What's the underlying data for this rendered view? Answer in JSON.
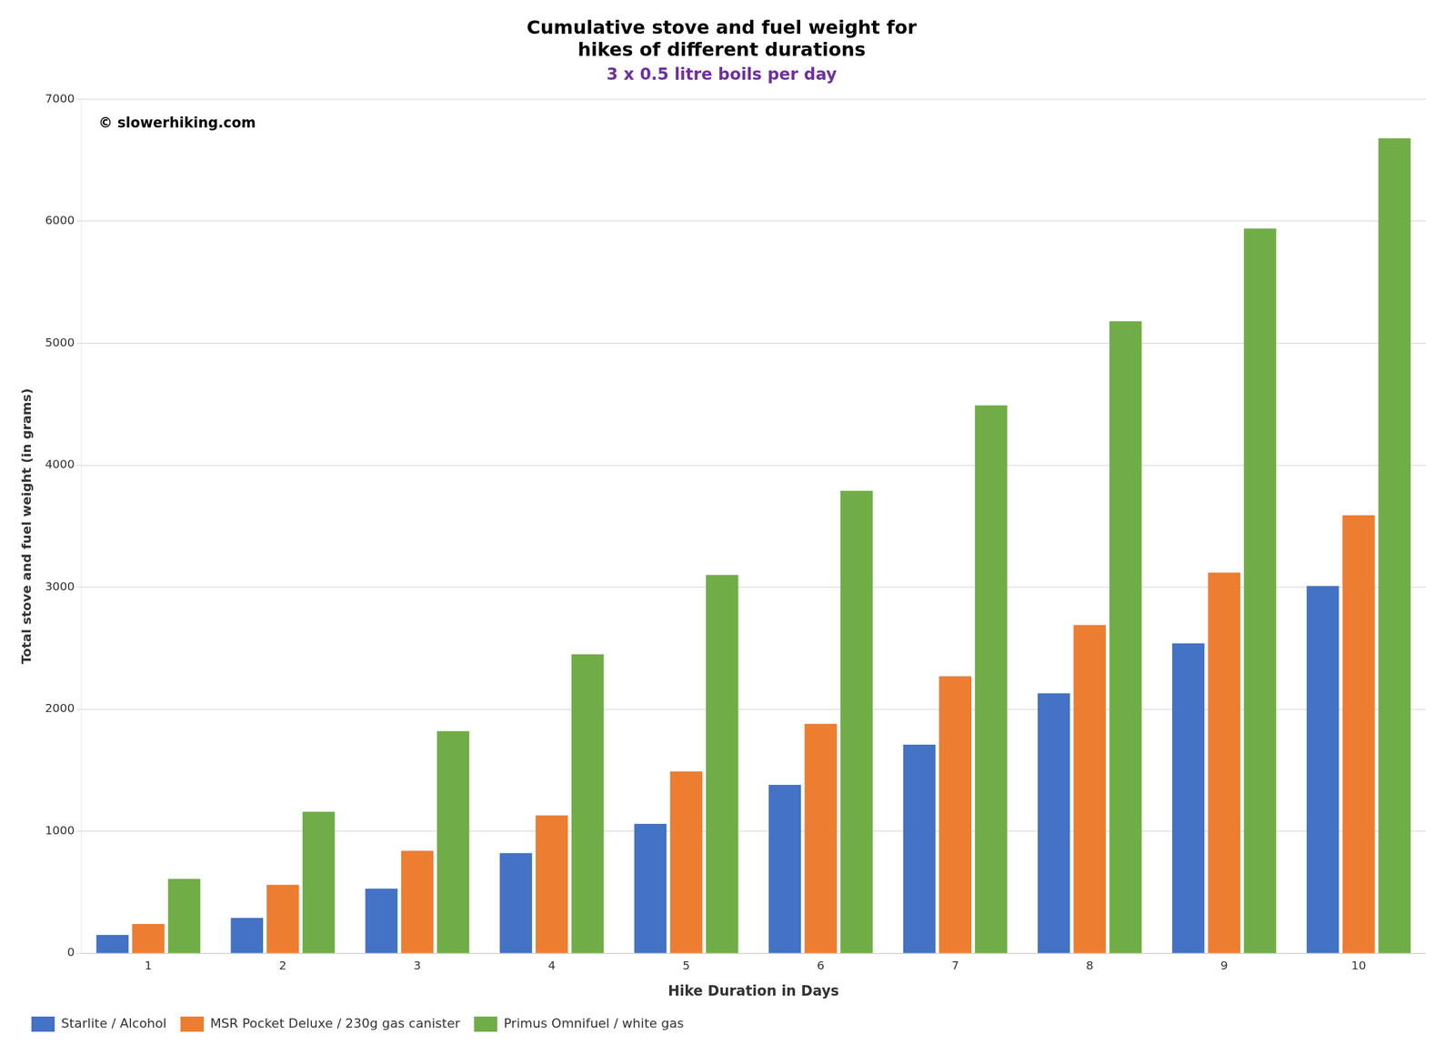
{
  "chart_data": {
    "type": "bar",
    "title": [
      "Cumulative stove and fuel weight for",
      "hikes of different durations"
    ],
    "title_color": "#000000",
    "subtitle": "3 x 0.5 litre boils per day",
    "subtitle_color": "#7030a0",
    "annotations": [
      {
        "text": "© slowerhiking.com",
        "color": "#000000"
      }
    ],
    "x_label": "Hike Duration in Days",
    "y_label": "Total stove and fuel weight (in grams)",
    "categories": [
      1,
      2,
      3,
      4,
      5,
      6,
      7,
      8,
      9,
      10
    ],
    "series": [
      {
        "name": "Starlite / Alcohol",
        "color": "#4472c4",
        "values": [
          150,
          290,
          530,
          820,
          1060,
          1380,
          1710,
          2130,
          2540,
          3010
        ]
      },
      {
        "name": "MSR Pocket Deluxe / 230g gas canister",
        "color": "#ed7d31",
        "values": [
          240,
          560,
          840,
          1130,
          1490,
          1880,
          2270,
          2690,
          3120,
          3590
        ]
      },
      {
        "name": "Primus Omnifuel / white gas",
        "color": "#70ad47",
        "values": [
          610,
          1160,
          1820,
          2450,
          3100,
          3790,
          4490,
          5180,
          5940,
          6680
        ]
      }
    ],
    "ylim": [
      0,
      7000
    ],
    "yticks": [
      0,
      1000,
      2000,
      3000,
      4000,
      5000,
      6000,
      7000
    ],
    "grid": true,
    "grid_color": "#cccccc",
    "legend": "lower left"
  }
}
